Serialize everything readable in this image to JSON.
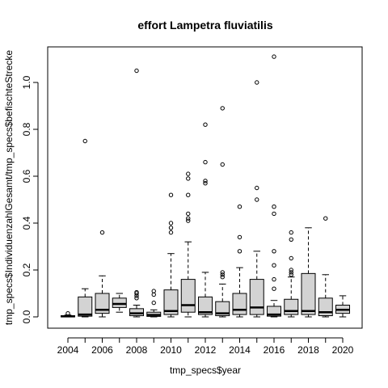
{
  "chart_data": {
    "type": "boxplot",
    "title_prefix": "effort",
    "title_species": "Lampetra fluviatilis",
    "xlabel": "tmp_specs$year",
    "ylabel": "tmp_specs$IndividuenzahlGesamt/tmp_specs$befischteStrecke",
    "ylim": [
      -0.04,
      1.14
    ],
    "y_ticks": [
      0.0,
      0.2,
      0.4,
      0.6,
      0.8,
      1.0
    ],
    "y_tick_labels": [
      "0.0",
      "0.2",
      "0.4",
      "0.6",
      "0.8",
      "1.0"
    ],
    "x_tick_labels": [
      "2004",
      "2006",
      "2008",
      "2010",
      "2012",
      "2014",
      "2016",
      "2018",
      "2020"
    ],
    "grid": false,
    "box_fill": "#d3d3d3",
    "series": [
      {
        "category": "2004",
        "whisker_low": 0.0,
        "q1": 0.0,
        "median": 0.002,
        "q3": 0.005,
        "whisker_high": 0.008,
        "outliers": [
          0.015
        ]
      },
      {
        "category": "2005",
        "whisker_low": 0.0,
        "q1": 0.003,
        "median": 0.01,
        "q3": 0.085,
        "whisker_high": 0.12,
        "outliers": [
          0.75
        ]
      },
      {
        "category": "2006",
        "whisker_low": 0.0,
        "q1": 0.015,
        "median": 0.03,
        "q3": 0.1,
        "whisker_high": 0.175,
        "outliers": [
          0.36
        ]
      },
      {
        "category": "2007",
        "whisker_low": 0.02,
        "q1": 0.04,
        "median": 0.055,
        "q3": 0.08,
        "whisker_high": 0.1,
        "outliers": []
      },
      {
        "category": "2008",
        "whisker_low": 0.0,
        "q1": 0.005,
        "median": 0.015,
        "q3": 0.035,
        "whisker_high": 0.05,
        "outliers": [
          0.08,
          0.09,
          0.1,
          0.105,
          1.05
        ]
      },
      {
        "category": "2009",
        "whisker_low": 0.0,
        "q1": 0.002,
        "median": 0.008,
        "q3": 0.02,
        "whisker_high": 0.03,
        "outliers": [
          0.06,
          0.095,
          0.11
        ]
      },
      {
        "category": "2010",
        "whisker_low": 0.0,
        "q1": 0.01,
        "median": 0.025,
        "q3": 0.115,
        "whisker_high": 0.27,
        "outliers": [
          0.36,
          0.38,
          0.4,
          0.52
        ]
      },
      {
        "category": "2011",
        "whisker_low": 0.0,
        "q1": 0.02,
        "median": 0.05,
        "q3": 0.16,
        "whisker_high": 0.32,
        "outliers": [
          0.41,
          0.42,
          0.44,
          0.52,
          0.59,
          0.61
        ]
      },
      {
        "category": "2012",
        "whisker_low": 0.0,
        "q1": 0.01,
        "median": 0.02,
        "q3": 0.085,
        "whisker_high": 0.19,
        "outliers": [
          0.57,
          0.58,
          0.66,
          0.82
        ]
      },
      {
        "category": "2013",
        "whisker_low": 0.0,
        "q1": 0.005,
        "median": 0.015,
        "q3": 0.065,
        "whisker_high": 0.14,
        "outliers": [
          0.17,
          0.18,
          0.19,
          0.65,
          0.89
        ]
      },
      {
        "category": "2014",
        "whisker_low": 0.0,
        "q1": 0.01,
        "median": 0.03,
        "q3": 0.1,
        "whisker_high": 0.21,
        "outliers": [
          0.28,
          0.34,
          0.47
        ]
      },
      {
        "category": "2015",
        "whisker_low": 0.0,
        "q1": 0.01,
        "median": 0.04,
        "q3": 0.16,
        "whisker_high": 0.28,
        "outliers": [
          0.5,
          0.55,
          1.0
        ]
      },
      {
        "category": "2016",
        "whisker_low": 0.0,
        "q1": 0.003,
        "median": 0.01,
        "q3": 0.045,
        "whisker_high": 0.07,
        "outliers": [
          0.12,
          0.16,
          0.22,
          0.28,
          0.44,
          0.47,
          1.11
        ]
      },
      {
        "category": "2017",
        "whisker_low": 0.0,
        "q1": 0.01,
        "median": 0.025,
        "q3": 0.075,
        "whisker_high": 0.17,
        "outliers": [
          0.18,
          0.19,
          0.2,
          0.25,
          0.33,
          0.36
        ]
      },
      {
        "category": "2018",
        "whisker_low": 0.0,
        "q1": 0.01,
        "median": 0.025,
        "q3": 0.185,
        "whisker_high": 0.38,
        "outliers": []
      },
      {
        "category": "2019",
        "whisker_low": 0.0,
        "q1": 0.005,
        "median": 0.02,
        "q3": 0.08,
        "whisker_high": 0.18,
        "outliers": [
          0.42
        ]
      },
      {
        "category": "2020",
        "whisker_low": 0.0,
        "q1": 0.015,
        "median": 0.03,
        "q3": 0.05,
        "whisker_high": 0.09,
        "outliers": []
      }
    ]
  }
}
